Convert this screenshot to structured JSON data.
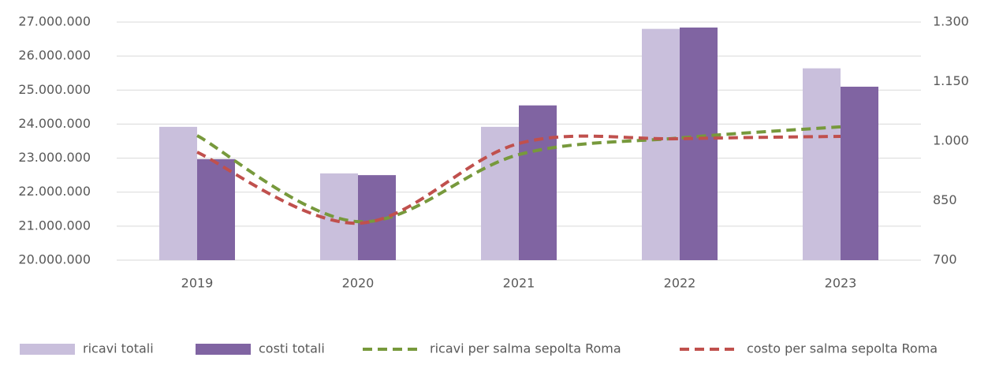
{
  "chart_data": {
    "type": "bar",
    "categories": [
      "2019",
      "2020",
      "2021",
      "2022",
      "2023"
    ],
    "series": [
      {
        "name": "ricavi totali",
        "color": "#c9bfdc",
        "values": [
          23920000,
          22550000,
          23920000,
          26800000,
          25640000
        ]
      },
      {
        "name": "costi totali",
        "color": "#8064a2",
        "values": [
          22970000,
          22500000,
          24550000,
          26840000,
          25100000
        ]
      },
      {
        "name": "ricavi per salma sepolta Roma",
        "type": "line",
        "axis": "y2",
        "dashed": true,
        "smooth": true,
        "color": "#77993c",
        "values": [
          1014,
          797,
          966,
          1008,
          1036
        ]
      },
      {
        "name": "costo per salma sepolta Roma",
        "type": "line",
        "axis": "y2",
        "dashed": true,
        "smooth": true,
        "color": "#c0504d",
        "values": [
          972,
          793,
          994,
          1006,
          1012
        ]
      }
    ],
    "ylim": [
      20000000,
      27000000
    ],
    "yticks": [
      {
        "value": 20000000,
        "label": "20.000.000"
      },
      {
        "value": 21000000,
        "label": "21.000.000"
      },
      {
        "value": 22000000,
        "label": "22.000.000"
      },
      {
        "value": 23000000,
        "label": "23.000.000"
      },
      {
        "value": 24000000,
        "label": "24.000.000"
      },
      {
        "value": 25000000,
        "label": "25.000.000"
      },
      {
        "value": 26000000,
        "label": "26.000.000"
      },
      {
        "value": 27000000,
        "label": "27.000.000"
      }
    ],
    "y2lim": [
      700,
      1300
    ],
    "y2ticks": [
      700,
      850,
      {
        "value": 1000,
        "label": "1.000"
      },
      {
        "value": 1150,
        "label": "1.150"
      },
      {
        "value": 1300,
        "label": "1.300"
      }
    ],
    "grid": true,
    "legend": "bottom"
  }
}
